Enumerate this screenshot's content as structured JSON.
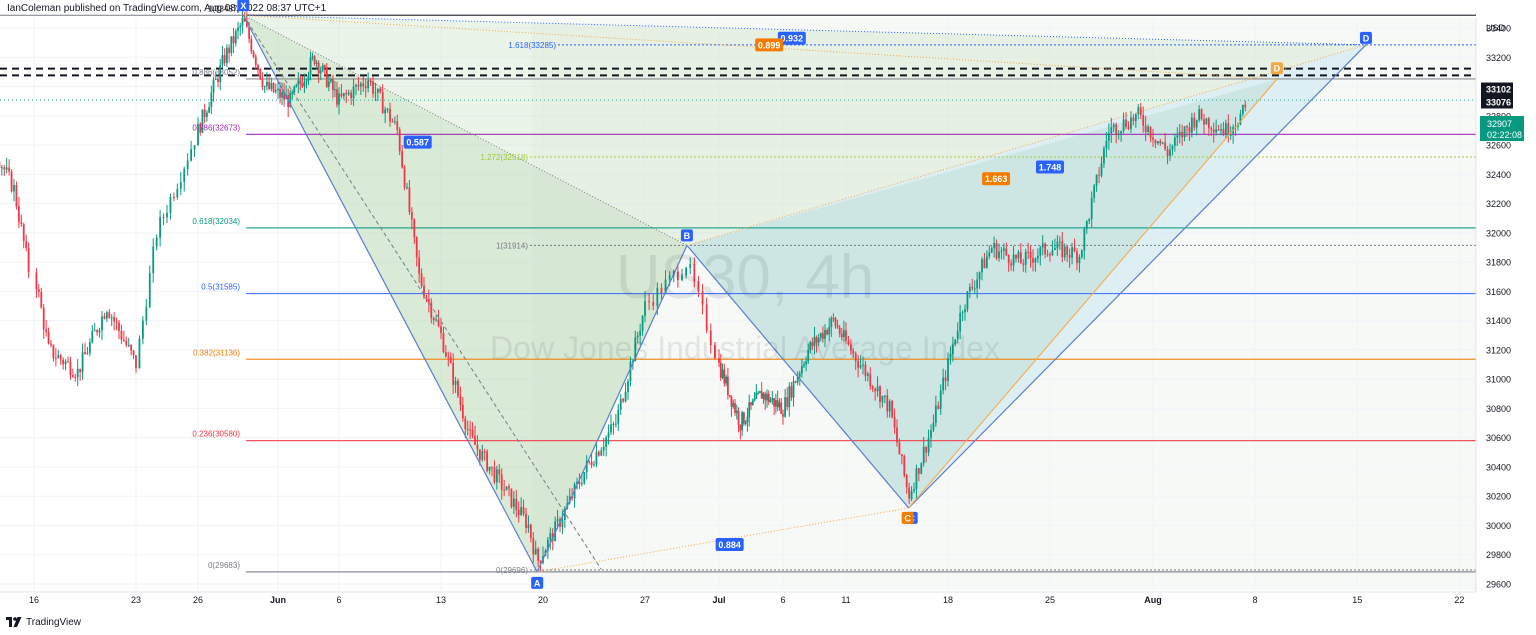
{
  "header": {
    "publisher": "IanColeman published on TradingView.com, Aug 08, 2022 08:37 UTC+1"
  },
  "footer": {
    "brand": "TradingView"
  },
  "watermark": {
    "symbol": "US30, 4h",
    "name": "Dow Jones Industrial Average Index"
  },
  "chart_data": {
    "type": "candlestick",
    "symbol": "US30",
    "timeframe": "4h",
    "currency": "USD",
    "y_axis": {
      "label": "USD",
      "ticks": [
        29600,
        29800,
        30000,
        30200,
        30400,
        30600,
        30800,
        31000,
        31200,
        31400,
        31600,
        31800,
        32000,
        32200,
        32400,
        32600,
        32800,
        33000,
        33200,
        33400
      ],
      "range": [
        29560,
        33600
      ]
    },
    "x_axis": {
      "ticks": [
        "16",
        "23",
        "26",
        "Jun",
        "6",
        "13",
        "20",
        "27",
        "Jul",
        "6",
        "11",
        "18",
        "25",
        "Aug",
        "8",
        "15",
        "22"
      ]
    },
    "price_lines": [
      {
        "label": "33102",
        "value": 33102
      },
      {
        "label": "33076",
        "value": 33076
      }
    ],
    "last_price": {
      "value": "32907",
      "countdown": "02:22:08"
    },
    "fib_levels": [
      {
        "label": "1(33487)",
        "value": 33487
      },
      {
        "label": "0.886(33052)",
        "value": 33052
      },
      {
        "label": "0.786(32673)",
        "value": 32673
      },
      {
        "label": "0.618(32034)",
        "value": 32034
      },
      {
        "label": "0.5(31585)",
        "value": 31585
      },
      {
        "label": "0.382(31136)",
        "value": 31136
      },
      {
        "label": "0.236(30580)",
        "value": 30580
      },
      {
        "label": "0(29683)",
        "value": 29683
      }
    ],
    "harmonic_levels": [
      {
        "label": "1.618(33285)",
        "value": 33285
      },
      {
        "label": "1.272(32518)",
        "value": 32518
      },
      {
        "label": "1(31914)",
        "value": 31914
      },
      {
        "label": "0(29696)",
        "value": 29696
      }
    ],
    "pattern_points": [
      {
        "label": "X",
        "date": "May 29",
        "value": 33487
      },
      {
        "label": "A",
        "date": "Jun 19",
        "value": 29683
      },
      {
        "label": "B",
        "date": "Jun 29",
        "value": 31914
      },
      {
        "label": "C",
        "date": "Jul 15",
        "value": 30120
      },
      {
        "label": "D",
        "date": "Aug 14",
        "value": 33285
      }
    ],
    "second_pattern_d": {
      "label": "D",
      "date": "Aug 7",
      "value": 33050
    },
    "ratios": [
      {
        "label": "0.932"
      },
      {
        "label": "0.899"
      },
      {
        "label": "0.587"
      },
      {
        "label": "1.748"
      },
      {
        "label": "1.663"
      },
      {
        "label": "0.884"
      }
    ]
  }
}
